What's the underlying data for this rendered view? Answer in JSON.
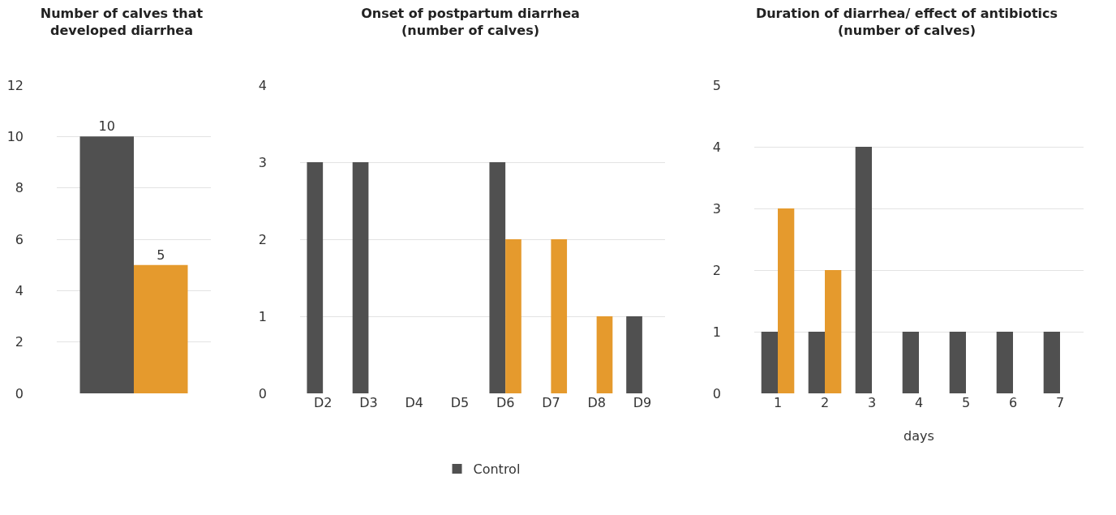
{
  "chart_data": [
    {
      "type": "bar",
      "title": "Number of calves that\ndeveloped diarrhea",
      "categories": [
        null
      ],
      "series": [
        {
          "color": "#505050",
          "values": [
            10
          ]
        },
        {
          "color": "#e59a2d",
          "values": [
            5
          ]
        }
      ],
      "ylim": [
        0,
        12
      ],
      "yticks": [
        0,
        2,
        4,
        6,
        8,
        10,
        12
      ],
      "grid": "y",
      "data_labels": true,
      "legend": false
    },
    {
      "type": "bar",
      "title": "Onset of postpartum diarrhea\n(number of calves)",
      "categories": [
        "D2",
        "D3",
        "D4",
        "D5",
        "D6",
        "D7",
        "D8",
        "D9"
      ],
      "series": [
        {
          "name": "Control",
          "color": "#505050",
          "values": [
            3,
            3,
            0,
            0,
            3,
            0,
            0,
            1
          ]
        },
        {
          "color": "#e59a2d",
          "values": [
            0,
            0,
            0,
            0,
            2,
            2,
            1,
            0
          ]
        }
      ],
      "ylim": [
        0,
        4
      ],
      "yticks": [
        0,
        1,
        2,
        3,
        4
      ],
      "grid": "y",
      "legend": "bottom"
    },
    {
      "type": "bar",
      "title": "Duration of diarrhea/ effect of antibiotics\n(number of calves)",
      "categories": [
        "1",
        "2",
        "3",
        "4",
        "5",
        "6",
        "7"
      ],
      "xlabel": "days",
      "series": [
        {
          "color": "#505050",
          "values": [
            1,
            1,
            4,
            1,
            1,
            1,
            1
          ]
        },
        {
          "color": "#e59a2d",
          "values": [
            3,
            2,
            0,
            0,
            0,
            0,
            0
          ]
        }
      ],
      "ylim": [
        0,
        5
      ],
      "yticks": [
        0,
        1,
        2,
        3,
        4,
        5
      ],
      "grid": "y",
      "legend": false
    }
  ]
}
